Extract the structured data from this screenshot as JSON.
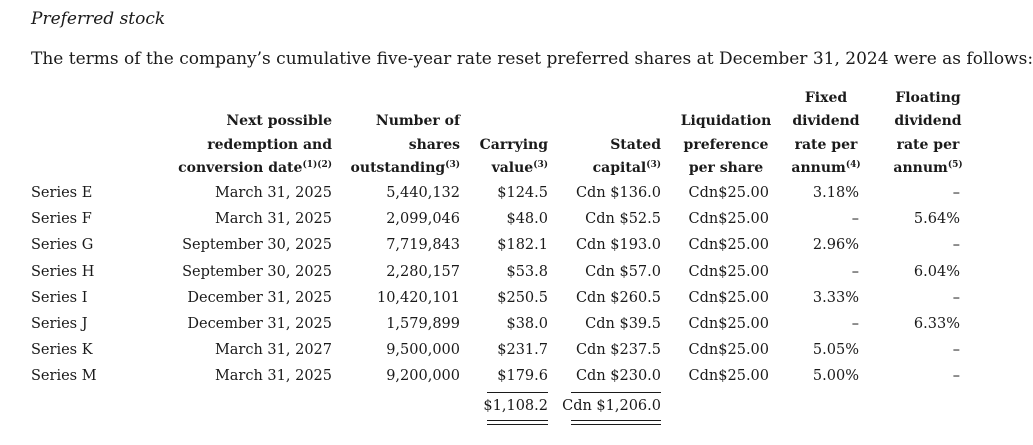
{
  "section_title": "Preferred stock",
  "intro": "The terms of the company’s cumulative five-year rate reset preferred shares at December 31, 2024 were as follows:",
  "headers": {
    "date": {
      "l1": "Next possible",
      "l2": "redemption and",
      "l3": "conversion date",
      "sup": "(1)(2)"
    },
    "shares": {
      "l1": "Number of",
      "l2": "shares",
      "l3": "outstanding",
      "sup": "(3)"
    },
    "carrying": {
      "l1": "Carrying",
      "l2": "value",
      "sup": "(3)"
    },
    "stated": {
      "l1": "Stated",
      "l2": "capital",
      "sup": "(3)"
    },
    "liquidation": {
      "l1": "Liquidation",
      "l2": "preference",
      "l3": "per share"
    },
    "fixed": {
      "l1": "Fixed",
      "l2": "dividend",
      "l3": "rate per",
      "l4": "annum",
      "sup": "(4)"
    },
    "floating": {
      "l1": "Floating",
      "l2": "dividend",
      "l3": "rate per",
      "l4": "annum",
      "sup": "(5)"
    }
  },
  "rows": [
    {
      "series": "Series E",
      "date": "March 31, 2025",
      "shares": "5,440,132",
      "carrying": "$124.5",
      "stated": "Cdn $136.0",
      "liquidation": "Cdn$25.00",
      "fixed": "3.18%",
      "floating": "–"
    },
    {
      "series": "Series F",
      "date": "March 31, 2025",
      "shares": "2,099,046",
      "carrying": "$48.0",
      "stated": "Cdn $52.5",
      "liquidation": "Cdn$25.00",
      "fixed": "–",
      "floating": "5.64%"
    },
    {
      "series": "Series G",
      "date": "September 30, 2025",
      "shares": "7,719,843",
      "carrying": "$182.1",
      "stated": "Cdn $193.0",
      "liquidation": "Cdn$25.00",
      "fixed": "2.96%",
      "floating": "–"
    },
    {
      "series": "Series H",
      "date": "September 30, 2025",
      "shares": "2,280,157",
      "carrying": "$53.8",
      "stated": "Cdn $57.0",
      "liquidation": "Cdn$25.00",
      "fixed": "–",
      "floating": "6.04%"
    },
    {
      "series": "Series I",
      "date": "December 31, 2025",
      "shares": "10,420,101",
      "carrying": "$250.5",
      "stated": "Cdn $260.5",
      "liquidation": "Cdn$25.00",
      "fixed": "3.33%",
      "floating": "–"
    },
    {
      "series": "Series J",
      "date": "December 31, 2025",
      "shares": "1,579,899",
      "carrying": "$38.0",
      "stated": "Cdn $39.5",
      "liquidation": "Cdn$25.00",
      "fixed": "–",
      "floating": "6.33%"
    },
    {
      "series": "Series K",
      "date": "March 31, 2027",
      "shares": "9,500,000",
      "carrying": "$231.7",
      "stated": "Cdn $237.5",
      "liquidation": "Cdn$25.00",
      "fixed": "5.05%",
      "floating": "–"
    },
    {
      "series": "Series M",
      "date": "March 31, 2025",
      "shares": "9,200,000",
      "carrying": "$179.6",
      "stated": "Cdn $230.0",
      "liquidation": "Cdn$25.00",
      "fixed": "5.00%",
      "floating": "–"
    }
  ],
  "totals": {
    "carrying": "$1,108.2",
    "stated": "Cdn $1,206.0"
  }
}
